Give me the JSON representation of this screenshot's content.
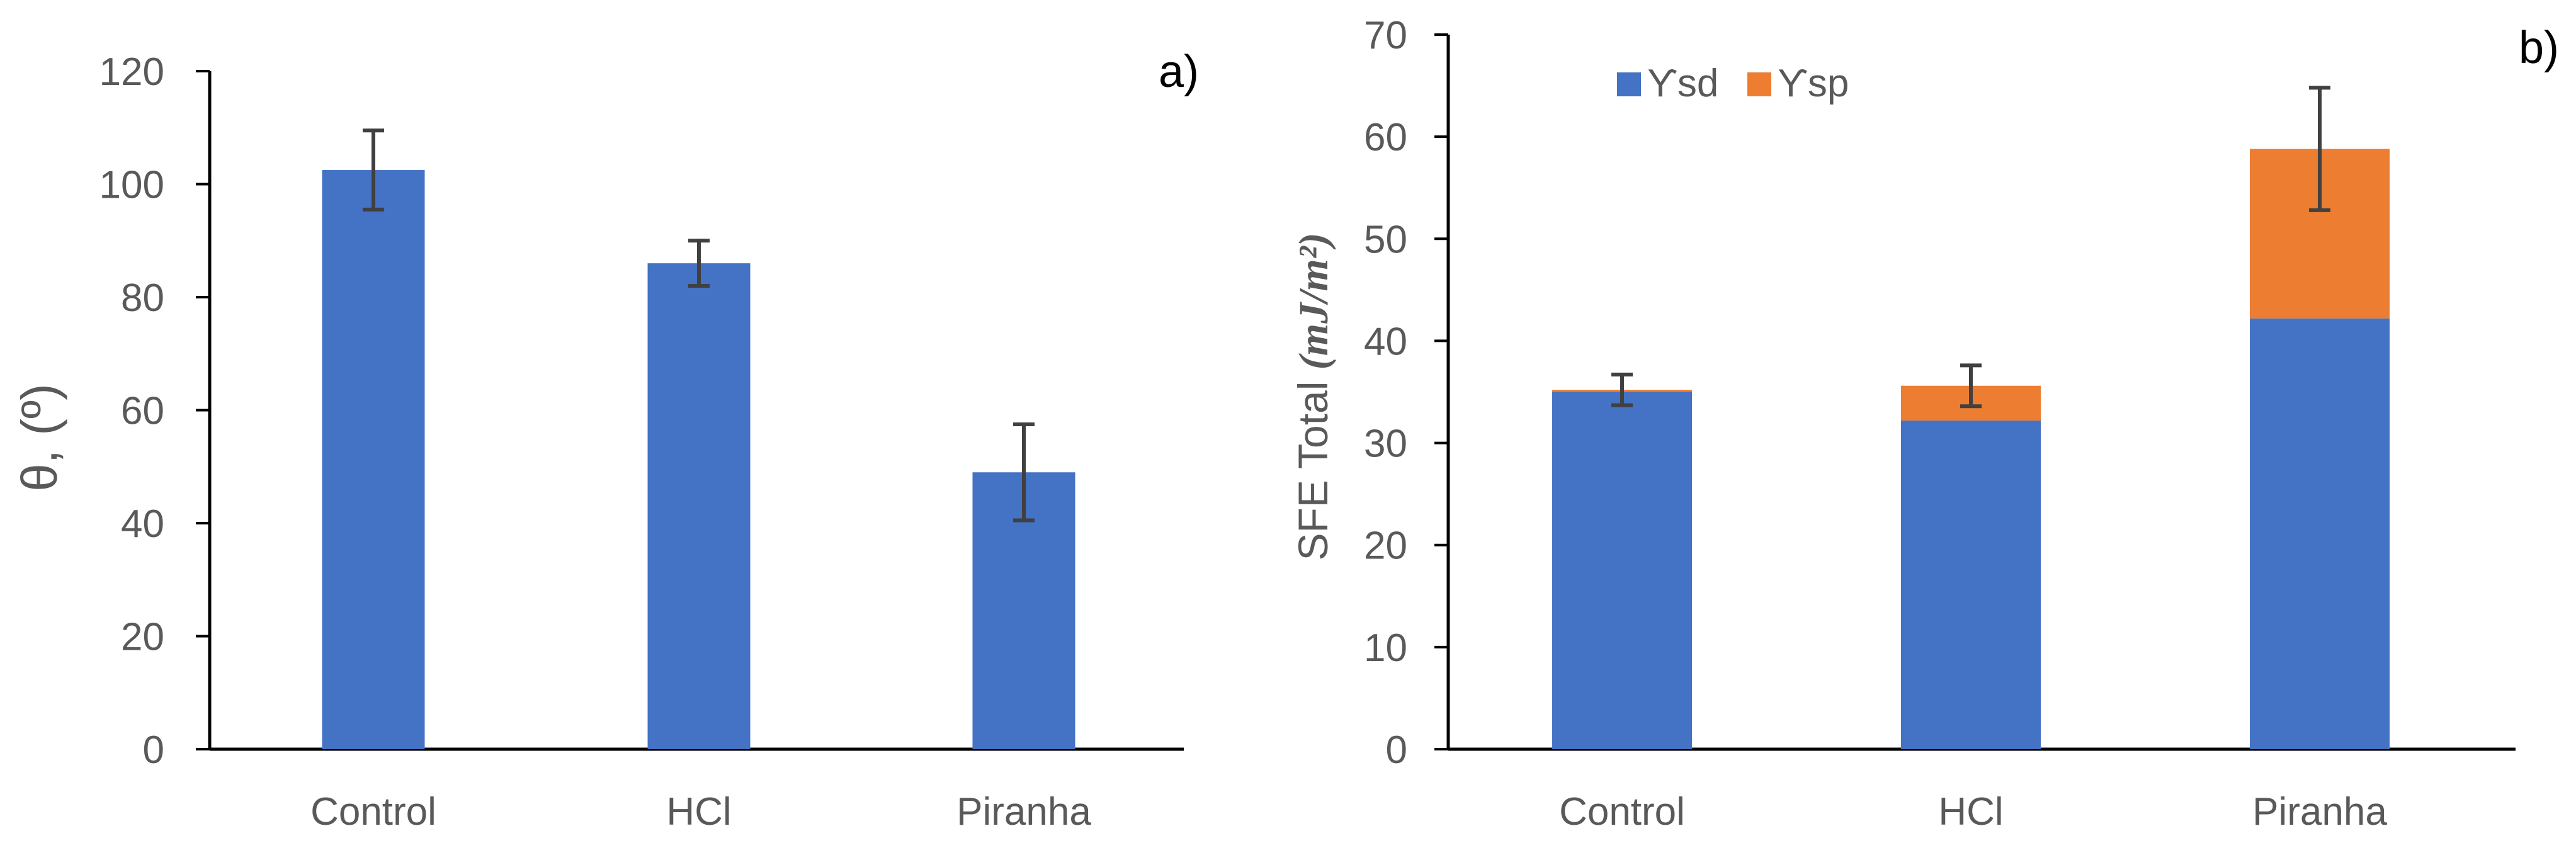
{
  "chart_data": [
    {
      "type": "bar",
      "panel_label": "a)",
      "ylabel": "θ, (º)",
      "categories": [
        "Control",
        "HCl",
        "Piranha"
      ],
      "series": [
        {
          "values": [
            102.5,
            86,
            49
          ],
          "errors": [
            7,
            4,
            8.5
          ]
        }
      ],
      "ylim": [
        0,
        120
      ],
      "yticks": [
        0,
        20,
        40,
        60,
        80,
        100,
        120
      ],
      "grid": false,
      "colors": {
        "bar": "#4472C4",
        "error": "#404040"
      }
    },
    {
      "type": "bar",
      "stacked": true,
      "panel_label": "b)",
      "ylabel": "SFE Total ",
      "ylabel_unit": "(mJ/m²)",
      "categories": [
        "Control",
        "HCl",
        "Piranha"
      ],
      "series": [
        {
          "name": "ϒsd",
          "values": [
            35,
            32.2,
            42.2
          ],
          "color": "#4472C4"
        },
        {
          "name": "ϒsp",
          "values": [
            0.2,
            3.4,
            16.6
          ],
          "color": "#ED7D31"
        }
      ],
      "totals_errors": [
        1.5,
        2,
        6
      ],
      "ylim": [
        0,
        70
      ],
      "yticks": [
        0,
        10,
        20,
        30,
        40,
        50,
        60,
        70
      ],
      "legend": "top-left",
      "grid": false,
      "colors": {
        "error": "#404040"
      }
    }
  ]
}
